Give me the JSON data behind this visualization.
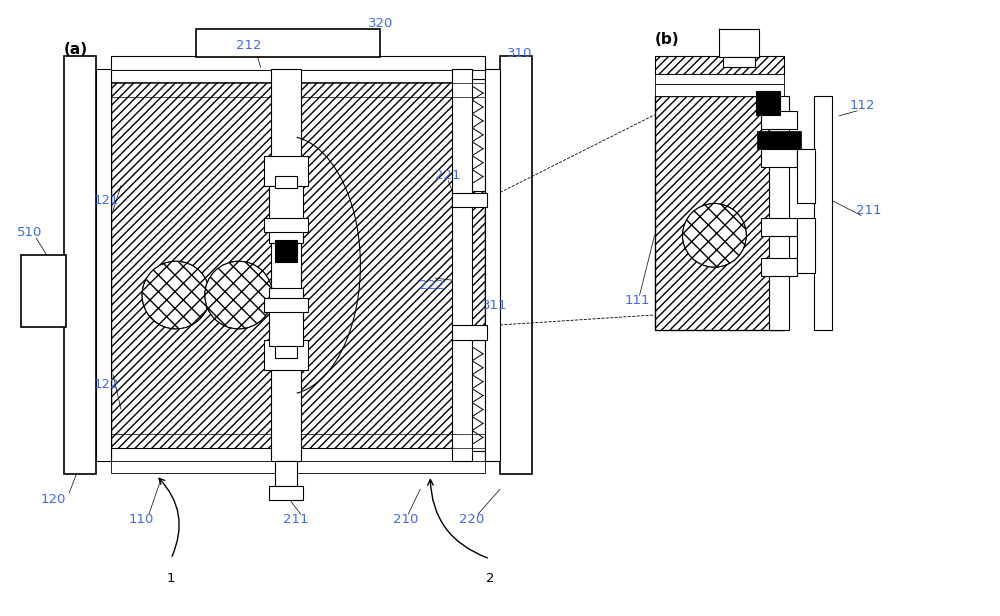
{
  "bg_color": "#ffffff",
  "line_color": "#000000",
  "label_color": "#4169e1",
  "figsize": [
    10.0,
    6.16
  ],
  "dpi": 100
}
